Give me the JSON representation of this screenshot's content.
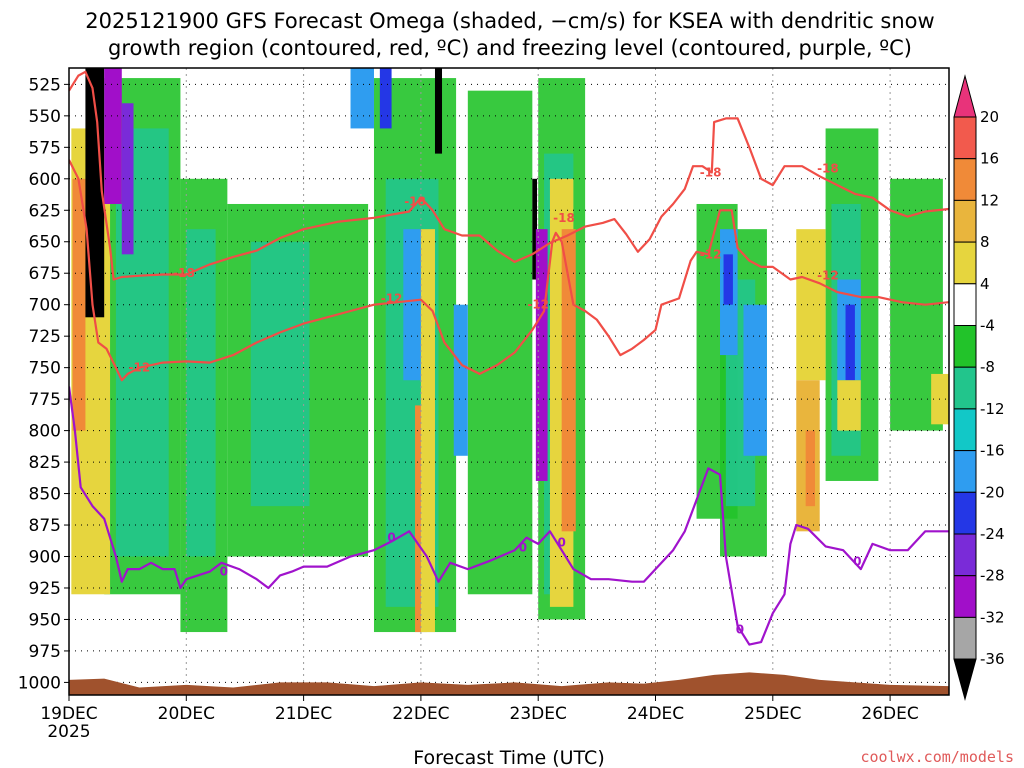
{
  "chart_data": {
    "type": "heatmap",
    "title_lines": [
      "2025121900 GFS Forecast Omega (shaded, −cm/s) for KSEA with dendritic snow",
      "growth region (contoured, red, ºC) and freezing level (contoured, purple, ºC)"
    ],
    "xlabel": "Forecast Time (UTC)",
    "credit": "coolwx.com/models",
    "y_axis": {
      "units": "hPa",
      "range": [
        512,
        1010
      ],
      "ticks": [
        525,
        550,
        575,
        600,
        625,
        650,
        675,
        700,
        725,
        750,
        775,
        800,
        825,
        850,
        875,
        900,
        925,
        950,
        975,
        1000
      ]
    },
    "x_axis": {
      "range_days": [
        "2025-12-19T00",
        "2025-12-26T12"
      ],
      "tick_labels": [
        "19DEC",
        "20DEC",
        "21DEC",
        "22DEC",
        "23DEC",
        "24DEC",
        "25DEC",
        "26DEC"
      ],
      "year_label": "2025"
    },
    "grid": true,
    "colorbar": {
      "tick_labels": [
        "20",
        "16",
        "12",
        "8",
        "4",
        "-4",
        "-8",
        "-12",
        "-16",
        "-20",
        "-24",
        "-28",
        "-32",
        "-36"
      ],
      "bins": [
        {
          "color": "#e8337a"
        },
        {
          "color": "#f25a4d"
        },
        {
          "color": "#f08a38"
        },
        {
          "color": "#e9b53d"
        },
        {
          "color": "#e6d53e"
        },
        {
          "color": "#ffffff"
        },
        {
          "color": "#22c32a"
        },
        {
          "color": "#22c58c"
        },
        {
          "color": "#12c8c7"
        },
        {
          "color": "#2f9df0"
        },
        {
          "color": "#2437e6"
        },
        {
          "color": "#7a2bd8"
        },
        {
          "color": "#a10fc9"
        },
        {
          "color": "#a6a6a6"
        },
        {
          "color": "#000000"
        }
      ]
    },
    "contours": [
      {
        "name": "-18",
        "color": "#f04e47",
        "labels": [
          {
            "text": "-18",
            "day": 0.98,
            "p": 675
          },
          {
            "text": "-18",
            "day": 2.95,
            "p": 618
          },
          {
            "text": "-18",
            "day": 4.22,
            "p": 631
          },
          {
            "text": "-18",
            "day": 5.47,
            "p": 595
          },
          {
            "text": "-18",
            "day": 6.47,
            "p": 592
          }
        ],
        "points": [
          [
            0,
            530
          ],
          [
            0.08,
            518
          ],
          [
            0.14,
            515
          ],
          [
            0.2,
            528
          ],
          [
            0.24,
            555
          ],
          [
            0.28,
            610
          ],
          [
            0.35,
            655
          ],
          [
            0.38,
            680
          ],
          [
            0.45,
            678
          ],
          [
            0.6,
            677
          ],
          [
            0.8,
            676
          ],
          [
            1.0,
            676
          ],
          [
            1.2,
            668
          ],
          [
            1.4,
            662
          ],
          [
            1.6,
            657
          ],
          [
            1.8,
            647
          ],
          [
            2.0,
            640
          ],
          [
            2.3,
            634
          ],
          [
            2.6,
            631
          ],
          [
            2.9,
            626
          ],
          [
            3.0,
            615
          ],
          [
            3.1,
            625
          ],
          [
            3.2,
            640
          ],
          [
            3.35,
            645
          ],
          [
            3.5,
            645
          ],
          [
            3.65,
            657
          ],
          [
            3.8,
            666
          ],
          [
            3.95,
            660
          ],
          [
            4.1,
            651
          ],
          [
            4.25,
            645
          ],
          [
            4.4,
            638
          ],
          [
            4.55,
            635
          ],
          [
            4.65,
            632
          ],
          [
            4.75,
            644
          ],
          [
            4.85,
            658
          ],
          [
            4.95,
            648
          ],
          [
            5.05,
            630
          ],
          [
            5.15,
            620
          ],
          [
            5.25,
            608
          ],
          [
            5.32,
            590
          ],
          [
            5.4,
            590
          ],
          [
            5.48,
            595
          ],
          [
            5.5,
            555
          ],
          [
            5.6,
            552
          ],
          [
            5.7,
            552
          ],
          [
            5.8,
            575
          ],
          [
            5.9,
            600
          ],
          [
            6.0,
            605
          ],
          [
            6.1,
            590
          ],
          [
            6.25,
            590
          ],
          [
            6.4,
            598
          ],
          [
            6.55,
            605
          ],
          [
            6.7,
            612
          ],
          [
            6.85,
            615
          ],
          [
            7.0,
            625
          ],
          [
            7.15,
            630
          ],
          [
            7.3,
            626
          ],
          [
            7.5,
            624
          ]
        ]
      },
      {
        "name": "-12",
        "color": "#f04e47",
        "labels": [
          {
            "text": "-12",
            "day": 0.6,
            "p": 750
          },
          {
            "text": "-12",
            "day": 2.75,
            "p": 695
          },
          {
            "text": "-12",
            "day": 4.0,
            "p": 700
          },
          {
            "text": "-12",
            "day": 5.47,
            "p": 660
          },
          {
            "text": "-12",
            "day": 6.47,
            "p": 677
          }
        ],
        "points": [
          [
            0,
            585
          ],
          [
            0.08,
            600
          ],
          [
            0.15,
            640
          ],
          [
            0.2,
            700
          ],
          [
            0.25,
            730
          ],
          [
            0.32,
            735
          ],
          [
            0.4,
            750
          ],
          [
            0.45,
            760
          ],
          [
            0.5,
            755
          ],
          [
            0.6,
            750
          ],
          [
            0.8,
            746
          ],
          [
            1.0,
            745
          ],
          [
            1.2,
            746
          ],
          [
            1.4,
            740
          ],
          [
            1.6,
            730
          ],
          [
            1.8,
            722
          ],
          [
            2.0,
            715
          ],
          [
            2.2,
            710
          ],
          [
            2.4,
            705
          ],
          [
            2.6,
            700
          ],
          [
            2.8,
            698
          ],
          [
            3.0,
            696
          ],
          [
            3.1,
            705
          ],
          [
            3.2,
            730
          ],
          [
            3.35,
            748
          ],
          [
            3.5,
            755
          ],
          [
            3.65,
            748
          ],
          [
            3.8,
            738
          ],
          [
            3.95,
            720
          ],
          [
            4.05,
            705
          ],
          [
            4.12,
            650
          ],
          [
            4.15,
            643
          ],
          [
            4.2,
            650
          ],
          [
            4.3,
            700
          ],
          [
            4.4,
            705
          ],
          [
            4.5,
            712
          ],
          [
            4.6,
            725
          ],
          [
            4.7,
            740
          ],
          [
            4.8,
            735
          ],
          [
            4.9,
            728
          ],
          [
            5.0,
            720
          ],
          [
            5.05,
            700
          ],
          [
            5.2,
            695
          ],
          [
            5.3,
            665
          ],
          [
            5.35,
            658
          ],
          [
            5.45,
            660
          ],
          [
            5.55,
            625
          ],
          [
            5.65,
            625
          ],
          [
            5.7,
            655
          ],
          [
            5.8,
            665
          ],
          [
            5.9,
            670
          ],
          [
            6.0,
            670
          ],
          [
            6.15,
            680
          ],
          [
            6.25,
            678
          ],
          [
            6.4,
            683
          ],
          [
            6.55,
            690
          ],
          [
            6.75,
            694
          ],
          [
            6.9,
            694
          ],
          [
            7.1,
            698
          ],
          [
            7.3,
            700
          ],
          [
            7.5,
            698
          ]
        ]
      },
      {
        "name": "0",
        "color": "#a013cc",
        "labels": [
          {
            "text": "0",
            "day": 1.32,
            "p": 912
          },
          {
            "text": "0",
            "day": 2.75,
            "p": 885
          },
          {
            "text": "0",
            "day": 3.87,
            "p": 893
          },
          {
            "text": "0",
            "day": 4.2,
            "p": 889
          },
          {
            "text": "0",
            "day": 5.72,
            "p": 958
          },
          {
            "text": "0",
            "day": 6.72,
            "p": 904
          }
        ],
        "points": [
          [
            0,
            765
          ],
          [
            0.05,
            800
          ],
          [
            0.1,
            845
          ],
          [
            0.2,
            860
          ],
          [
            0.3,
            870
          ],
          [
            0.4,
            900
          ],
          [
            0.45,
            920
          ],
          [
            0.5,
            910
          ],
          [
            0.6,
            910
          ],
          [
            0.7,
            905
          ],
          [
            0.8,
            910
          ],
          [
            0.9,
            910
          ],
          [
            0.95,
            925
          ],
          [
            1.0,
            918
          ],
          [
            1.2,
            912
          ],
          [
            1.3,
            905
          ],
          [
            1.45,
            910
          ],
          [
            1.6,
            918
          ],
          [
            1.7,
            925
          ],
          [
            1.8,
            915
          ],
          [
            1.9,
            912
          ],
          [
            2.0,
            908
          ],
          [
            2.2,
            908
          ],
          [
            2.4,
            900
          ],
          [
            2.6,
            895
          ],
          [
            2.75,
            888
          ],
          [
            2.9,
            880
          ],
          [
            3.05,
            900
          ],
          [
            3.15,
            920
          ],
          [
            3.25,
            905
          ],
          [
            3.4,
            910
          ],
          [
            3.6,
            903
          ],
          [
            3.8,
            895
          ],
          [
            3.9,
            885
          ],
          [
            4.0,
            890
          ],
          [
            4.1,
            880
          ],
          [
            4.2,
            895
          ],
          [
            4.3,
            910
          ],
          [
            4.45,
            918
          ],
          [
            4.6,
            918
          ],
          [
            4.8,
            920
          ],
          [
            4.9,
            920
          ],
          [
            5.0,
            910
          ],
          [
            5.15,
            895
          ],
          [
            5.25,
            880
          ],
          [
            5.35,
            855
          ],
          [
            5.45,
            830
          ],
          [
            5.55,
            835
          ],
          [
            5.6,
            900
          ],
          [
            5.7,
            955
          ],
          [
            5.8,
            970
          ],
          [
            5.9,
            968
          ],
          [
            6.0,
            945
          ],
          [
            6.1,
            930
          ],
          [
            6.15,
            890
          ],
          [
            6.2,
            875
          ],
          [
            6.3,
            878
          ],
          [
            6.45,
            892
          ],
          [
            6.6,
            895
          ],
          [
            6.75,
            910
          ],
          [
            6.85,
            890
          ],
          [
            7.0,
            895
          ],
          [
            7.15,
            895
          ],
          [
            7.3,
            880
          ],
          [
            7.5,
            880
          ]
        ]
      }
    ],
    "terrain": {
      "name": "ground",
      "color": "#a0522d",
      "points": [
        [
          0,
          998
        ],
        [
          0.3,
          997
        ],
        [
          0.6,
          1004
        ],
        [
          1.0,
          1002
        ],
        [
          1.4,
          1004
        ],
        [
          1.8,
          1000
        ],
        [
          2.2,
          1000
        ],
        [
          2.6,
          1003
        ],
        [
          3.0,
          1000
        ],
        [
          3.4,
          1002
        ],
        [
          3.8,
          1000
        ],
        [
          4.2,
          1003
        ],
        [
          4.6,
          1000
        ],
        [
          4.9,
          1001
        ],
        [
          5.2,
          998
        ],
        [
          5.5,
          994
        ],
        [
          5.8,
          992
        ],
        [
          6.1,
          994
        ],
        [
          6.4,
          998
        ],
        [
          6.7,
          1000
        ],
        [
          7.0,
          1002
        ],
        [
          7.5,
          1003
        ]
      ]
    }
  }
}
